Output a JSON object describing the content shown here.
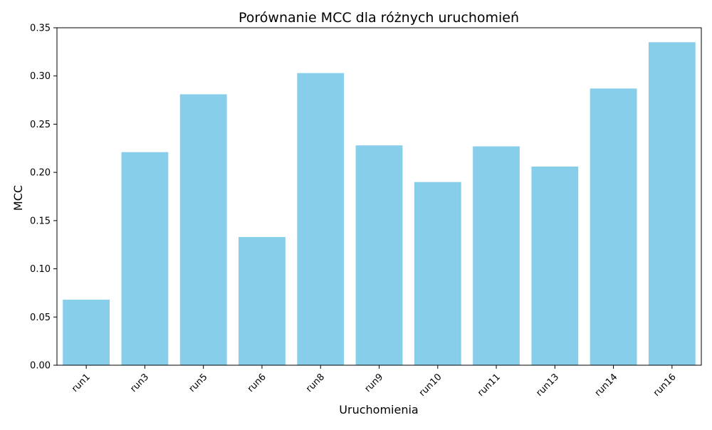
{
  "chart_data": {
    "type": "bar",
    "title": "Porównanie MCC dla różnych uruchomień",
    "xlabel": "Uruchomienia",
    "ylabel": "MCC",
    "categories": [
      "run1",
      "run3",
      "run5",
      "run6",
      "run8",
      "run9",
      "run10",
      "run11",
      "run13",
      "run14",
      "run16"
    ],
    "values": [
      0.068,
      0.221,
      0.281,
      0.133,
      0.303,
      0.228,
      0.19,
      0.227,
      0.206,
      0.287,
      0.335
    ],
    "ylim": [
      0,
      0.35
    ],
    "yticks": [
      "0.00",
      "0.05",
      "0.10",
      "0.15",
      "0.20",
      "0.25",
      "0.30",
      "0.35"
    ],
    "bar_color": "#87ceeb",
    "grid": false,
    "legend": "none"
  }
}
